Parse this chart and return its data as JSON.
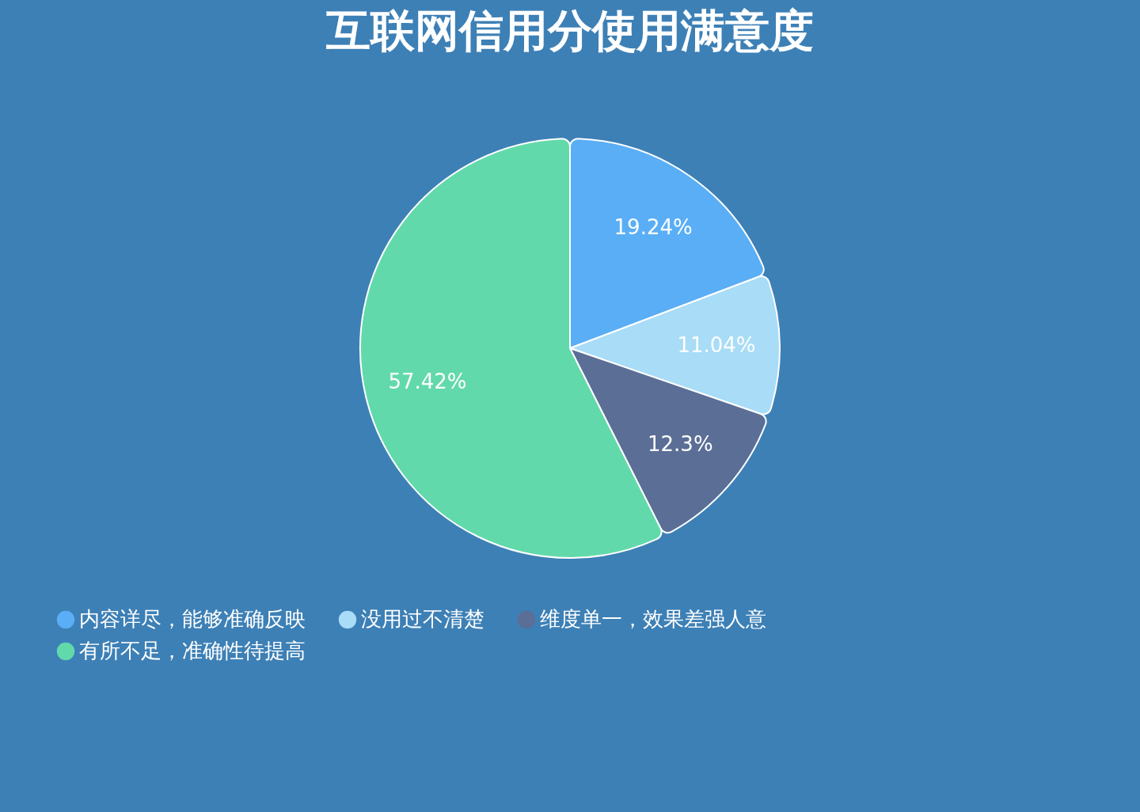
{
  "chart_data": {
    "type": "pie",
    "title": "互联网信用分使用满意度",
    "categories": [
      "内容详尽，能够准确反映",
      "没用过不清楚",
      "维度单一，效果差强人意",
      "有所不足，准确性待提高"
    ],
    "values": [
      19.24,
      11.04,
      12.3,
      57.42
    ],
    "colors": [
      "#5aaef5",
      "#a8dcf7",
      "#5a6e96",
      "#62d9ab"
    ],
    "value_labels": [
      "19.24%",
      "11.04%",
      "12.3%",
      "57.42%"
    ],
    "legend": "bottom"
  }
}
